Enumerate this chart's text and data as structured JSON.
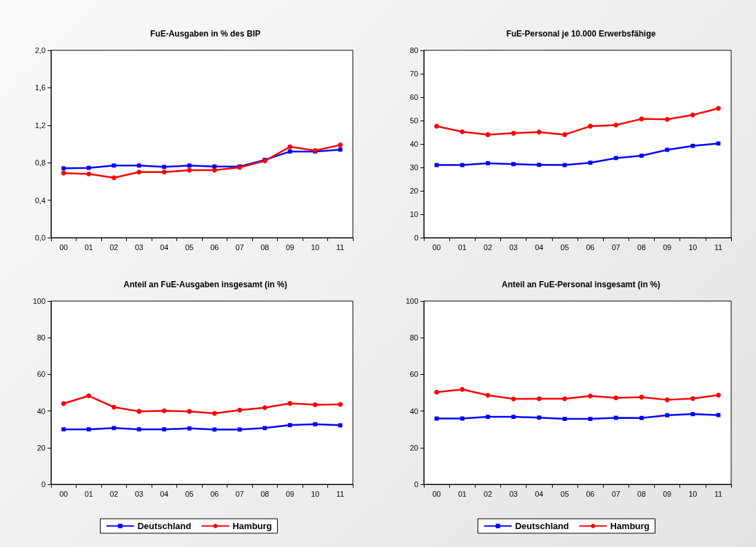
{
  "chart_data": [
    {
      "type": "line",
      "title": "FuE-Ausgaben in % des BIP",
      "categories": [
        "00",
        "01",
        "02",
        "03",
        "04",
        "05",
        "06",
        "07",
        "08",
        "09",
        "10",
        "11"
      ],
      "ylim": [
        0,
        2.0
      ],
      "yticks": [
        {
          "value": 0,
          "label": "0,0"
        },
        {
          "value": 0.4,
          "label": "0,4"
        },
        {
          "value": 0.8,
          "label": "0,8"
        },
        {
          "value": 1.2,
          "label": "1,2"
        },
        {
          "value": 1.6,
          "label": "1,6"
        },
        {
          "value": 2.0,
          "label": "2,0"
        }
      ],
      "grid": false,
      "legend": false,
      "series": [
        {
          "color": "#0000ff",
          "marker": "square",
          "values": [
            0.74,
            0.745,
            0.77,
            0.77,
            0.755,
            0.77,
            0.76,
            0.76,
            0.83,
            0.92,
            0.92,
            0.94
          ]
        },
        {
          "color": "#ff0000",
          "marker": "circle",
          "values": [
            0.69,
            0.68,
            0.64,
            0.7,
            0.7,
            0.72,
            0.72,
            0.75,
            0.82,
            0.97,
            0.93,
            0.99
          ]
        }
      ]
    },
    {
      "type": "line",
      "title": "FuE-Personal je 10.000 Erwerbsfähige",
      "categories": [
        "00",
        "01",
        "02",
        "03",
        "04",
        "05",
        "06",
        "07",
        "08",
        "09",
        "10",
        "11"
      ],
      "ylim": [
        0,
        80
      ],
      "yticks": [
        0,
        10,
        20,
        30,
        40,
        50,
        60,
        70,
        80
      ],
      "grid": false,
      "legend": false,
      "series": [
        {
          "color": "#0000ff",
          "marker": "square",
          "values": [
            31,
            31,
            31.8,
            31.4,
            31.1,
            31,
            32,
            34,
            35,
            37.5,
            39.2,
            40.2
          ]
        },
        {
          "color": "#ff0000",
          "marker": "circle",
          "values": [
            47.6,
            45.2,
            44,
            44.6,
            45.1,
            44,
            47.6,
            48.1,
            50.7,
            50.5,
            52.4,
            55.2
          ]
        }
      ]
    },
    {
      "type": "line",
      "title": "Anteil an FuE-Ausgaben insgesamt (in %)",
      "categories": [
        "00",
        "01",
        "02",
        "03",
        "04",
        "05",
        "06",
        "07",
        "08",
        "09",
        "10",
        "11"
      ],
      "ylim": [
        0,
        100
      ],
      "yticks": [
        0,
        20,
        40,
        60,
        80,
        100
      ],
      "grid": false,
      "legend": "bottom",
      "series": [
        {
          "name": "Deutschland",
          "color": "#0000ff",
          "marker": "square",
          "values": [
            30.0,
            30.0,
            30.7,
            30.0,
            30.0,
            30.5,
            29.9,
            29.9,
            30.7,
            32.3,
            32.8,
            32.2
          ]
        },
        {
          "name": "Hamburg",
          "color": "#ff0000",
          "marker": "circle",
          "values": [
            44.1,
            48.3,
            42.1,
            39.8,
            40.1,
            39.8,
            38.7,
            40.5,
            41.8,
            44.2,
            43.4,
            43.6
          ]
        }
      ]
    },
    {
      "type": "line",
      "title": "Anteil an FuE-Personal insgesamt (in %)",
      "categories": [
        "00",
        "01",
        "02",
        "03",
        "04",
        "05",
        "06",
        "07",
        "08",
        "09",
        "10",
        "11"
      ],
      "ylim": [
        0,
        100
      ],
      "yticks": [
        0,
        20,
        40,
        60,
        80,
        100
      ],
      "grid": false,
      "legend": "bottom",
      "series": [
        {
          "name": "Deutschland",
          "color": "#0000ff",
          "marker": "square",
          "values": [
            35.9,
            35.9,
            36.8,
            36.8,
            36.4,
            35.7,
            35.7,
            36.3,
            36.2,
            37.7,
            38.3,
            37.8
          ]
        },
        {
          "name": "Hamburg",
          "color": "#ff0000",
          "marker": "circle",
          "values": [
            50.3,
            51.8,
            48.6,
            46.6,
            46.7,
            46.7,
            48.2,
            47.2,
            47.6,
            46.1,
            46.8,
            48.7
          ]
        }
      ]
    }
  ]
}
